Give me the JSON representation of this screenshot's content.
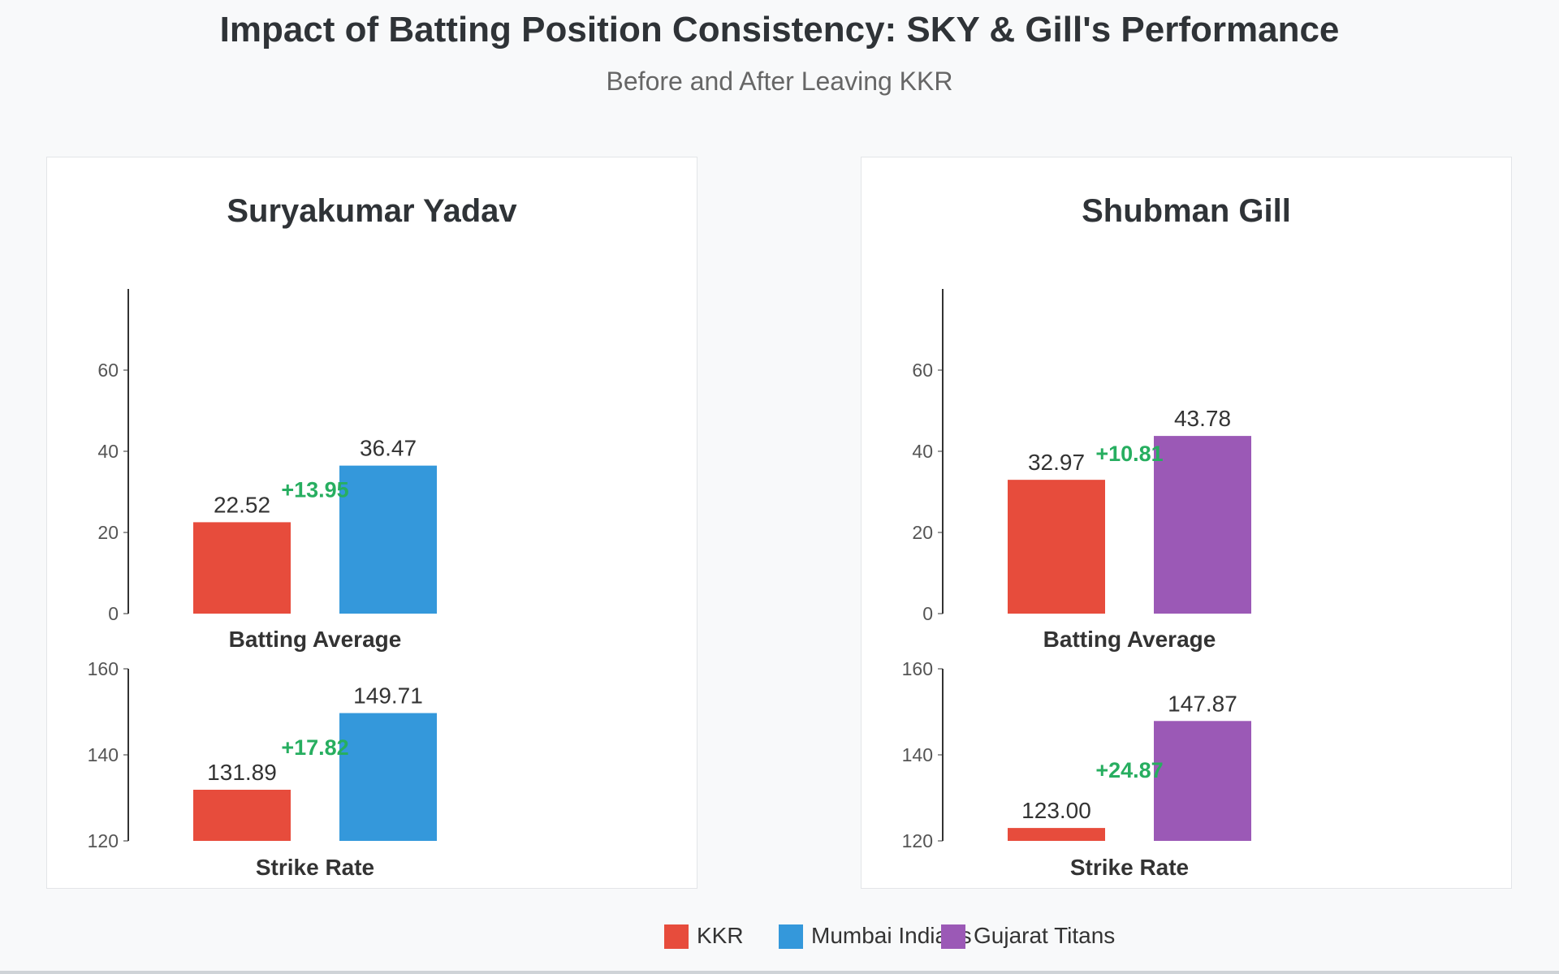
{
  "header": {
    "title": "Impact of Batting Position Consistency: SKY & Gill's Performance",
    "subtitle": "Before and After Leaving KKR"
  },
  "colors": {
    "KKR": "#e74c3c",
    "Mumbai Indians": "#3498db",
    "Gujarat Titans": "#9b59b6",
    "improvement": "#27ae60"
  },
  "legend": [
    {
      "label": "KKR",
      "color": "#e74c3c"
    },
    {
      "label": "Mumbai Indians",
      "color": "#3498db"
    },
    {
      "label": "Gujarat Titans",
      "color": "#9b59b6"
    }
  ],
  "chart_data": [
    {
      "type": "bar",
      "title": "Suryakumar Yadav",
      "metrics": [
        {
          "xlabel": "Batting Average",
          "ylim": [
            0,
            80
          ],
          "ticks": [
            0,
            20,
            40,
            60
          ],
          "values": [
            22.52,
            36.47
          ],
          "labels": [
            "22.52",
            "36.47"
          ],
          "teams": [
            "KKR",
            "Mumbai Indians"
          ],
          "improvement": "+13.95"
        },
        {
          "xlabel": "Strike Rate",
          "ylim": [
            120,
            160
          ],
          "ticks": [
            120,
            140,
            160
          ],
          "values": [
            131.89,
            149.71
          ],
          "labels": [
            "131.89",
            "149.71"
          ],
          "teams": [
            "KKR",
            "Mumbai Indians"
          ],
          "improvement": "+17.82"
        }
      ]
    },
    {
      "type": "bar",
      "title": "Shubman Gill",
      "metrics": [
        {
          "xlabel": "Batting Average",
          "ylim": [
            0,
            80
          ],
          "ticks": [
            0,
            20,
            40,
            60
          ],
          "values": [
            32.97,
            43.78
          ],
          "labels": [
            "32.97",
            "43.78"
          ],
          "teams": [
            "KKR",
            "Gujarat Titans"
          ],
          "improvement": "+10.81"
        },
        {
          "xlabel": "Strike Rate",
          "ylim": [
            120,
            160
          ],
          "ticks": [
            120,
            140,
            160
          ],
          "values": [
            123.0,
            147.87
          ],
          "labels": [
            "123.00",
            "147.87"
          ],
          "teams": [
            "KKR",
            "Gujarat Titans"
          ],
          "improvement": "+24.87"
        }
      ]
    }
  ]
}
